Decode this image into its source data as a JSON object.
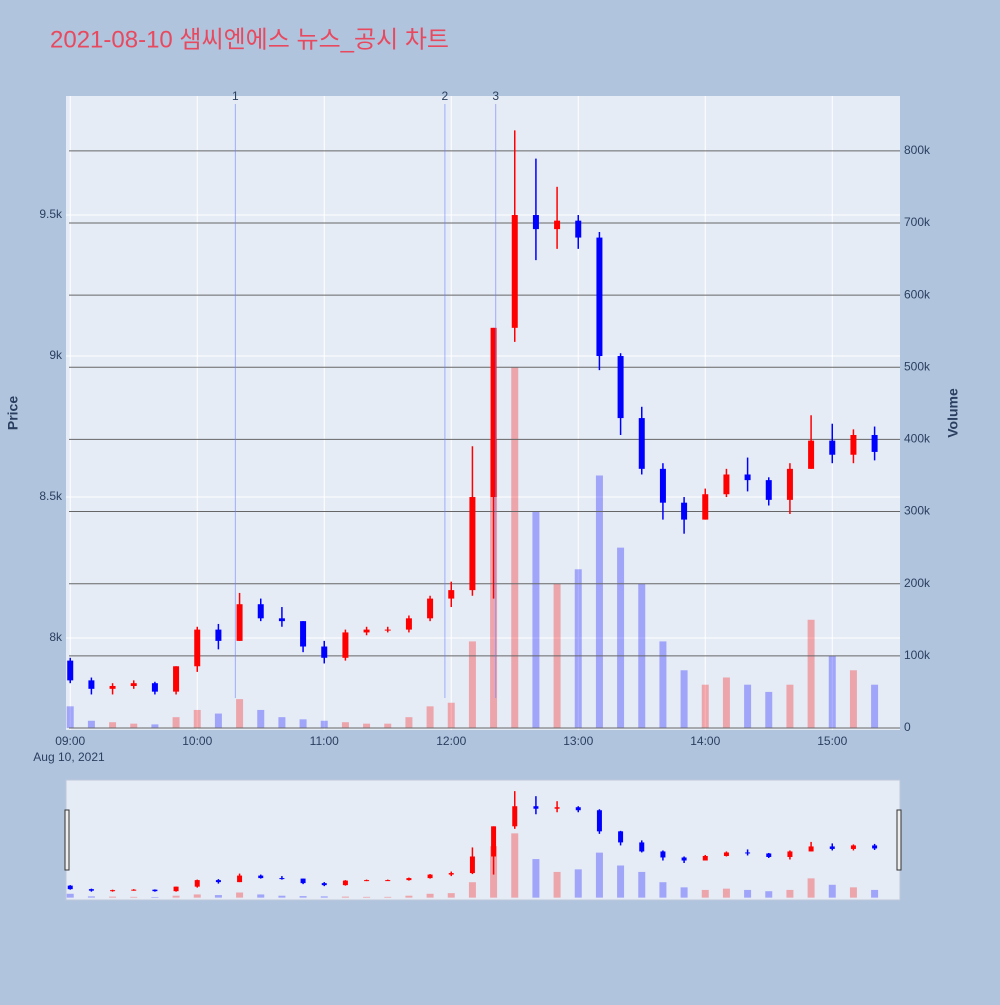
{
  "chart_data": {
    "type": "candlestick",
    "title": "2021-08-10 샘씨엔에스 뉴스_공시 차트",
    "y_label": "Price",
    "y2_label": "Volume",
    "x_date_label": "Aug 10, 2021",
    "x": [
      "09:00",
      "09:10",
      "09:20",
      "09:30",
      "09:40",
      "09:50",
      "10:00",
      "10:10",
      "10:20",
      "10:30",
      "10:40",
      "10:50",
      "11:00",
      "11:10",
      "11:20",
      "11:30",
      "11:40",
      "11:50",
      "12:00",
      "12:10",
      "12:20",
      "12:30",
      "12:40",
      "12:50",
      "13:00",
      "13:10",
      "13:20",
      "13:30",
      "13:40",
      "13:50",
      "14:00",
      "14:10",
      "14:20",
      "14:30",
      "14:40",
      "14:50",
      "15:00",
      "15:10",
      "15:20"
    ],
    "open": [
      7920,
      7850,
      7820,
      7830,
      7840,
      7810,
      7900,
      8030,
      7990,
      8120,
      8070,
      8060,
      7970,
      7930,
      8020,
      8030,
      8030,
      8070,
      8140,
      8170,
      8500,
      9100,
      9500,
      9450,
      9480,
      9420,
      9000,
      8780,
      8600,
      8480,
      8420,
      8510,
      8580,
      8560,
      8490,
      8600,
      8700,
      8650,
      8720
    ],
    "high": [
      7930,
      7860,
      7840,
      7850,
      7845,
      7900,
      8040,
      8050,
      8160,
      8140,
      8110,
      8060,
      7990,
      8030,
      8040,
      8040,
      8080,
      8150,
      8200,
      8680,
      9100,
      9800,
      9700,
      9600,
      9500,
      9440,
      9010,
      8820,
      8620,
      8500,
      8530,
      8600,
      8640,
      8570,
      8620,
      8790,
      8760,
      8740,
      8750
    ],
    "low": [
      7840,
      7800,
      7800,
      7820,
      7800,
      7800,
      7880,
      7960,
      7990,
      8060,
      8040,
      7950,
      7910,
      7920,
      8010,
      8020,
      8020,
      8060,
      8110,
      8150,
      8140,
      9050,
      9340,
      9380,
      9380,
      8950,
      8720,
      8580,
      8420,
      8370,
      8420,
      8500,
      8520,
      8470,
      8440,
      8600,
      8620,
      8620,
      8630
    ],
    "close": [
      7850,
      7820,
      7830,
      7840,
      7810,
      7900,
      8030,
      7990,
      8120,
      8070,
      8060,
      7970,
      7930,
      8020,
      8030,
      8030,
      8070,
      8140,
      8170,
      8500,
      9100,
      9500,
      9450,
      9480,
      9420,
      9000,
      8780,
      8600,
      8480,
      8420,
      8510,
      8580,
      8560,
      8490,
      8600,
      8700,
      8650,
      8720,
      8660
    ],
    "volume": [
      30000,
      10000,
      8000,
      6000,
      5000,
      15000,
      25000,
      20000,
      40000,
      25000,
      15000,
      12000,
      10000,
      8000,
      6000,
      6000,
      15000,
      30000,
      35000,
      120000,
      400000,
      500000,
      300000,
      200000,
      220000,
      350000,
      250000,
      200000,
      120000,
      80000,
      60000,
      70000,
      60000,
      50000,
      60000,
      150000,
      100000,
      80000,
      60000
    ],
    "increasing_color": "#ff0000",
    "decreasing_color": "#0000ff",
    "xlim": [
      "08:58",
      "15:32"
    ],
    "xticks": [
      "09:00",
      "10:00",
      "11:00",
      "12:00",
      "13:00",
      "14:00",
      "15:00"
    ],
    "ylim": [
      7674,
      9922
    ],
    "yticks": [
      {
        "value": 8000,
        "label": "8k"
      },
      {
        "value": 8500,
        "label": "8.5k"
      },
      {
        "value": 9000,
        "label": "9k"
      },
      {
        "value": 9500,
        "label": "9.5k"
      }
    ],
    "y2lim": [
      -2800,
      876000
    ],
    "y2ticks": [
      0,
      {
        "value": 100000,
        "label": "100k"
      },
      {
        "value": 200000,
        "label": "200k"
      },
      {
        "value": 300000,
        "label": "300k"
      },
      {
        "value": 400000,
        "label": "400k"
      },
      {
        "value": 500000,
        "label": "500k"
      },
      {
        "value": 600000,
        "label": "600k"
      },
      {
        "value": 700000,
        "label": "700k"
      },
      {
        "value": 800000,
        "label": "800k"
      }
    ],
    "news": [
      {
        "x": "10:18",
        "label": "1"
      },
      {
        "x": "11:57",
        "label": "2"
      },
      {
        "x": "12:21",
        "label": "3"
      }
    ],
    "grid": true
  }
}
